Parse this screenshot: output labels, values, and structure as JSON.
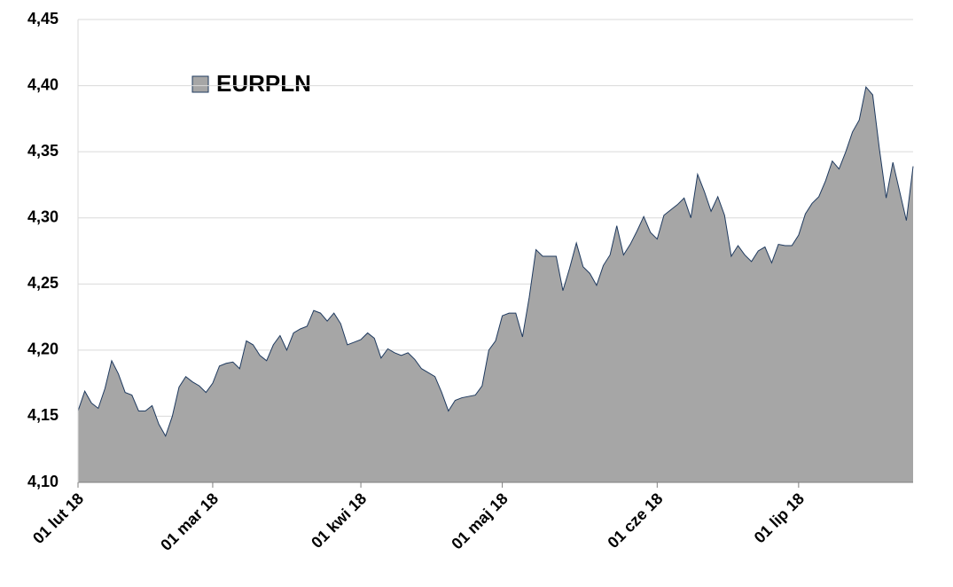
{
  "chart_data": {
    "type": "area",
    "categories": [
      "01 lut 18",
      null,
      null,
      null,
      null,
      null,
      null,
      null,
      null,
      null,
      null,
      null,
      null,
      null,
      null,
      null,
      null,
      null,
      null,
      null,
      "01 mar 18",
      null,
      null,
      null,
      null,
      null,
      null,
      null,
      null,
      null,
      null,
      null,
      null,
      null,
      null,
      null,
      null,
      null,
      null,
      null,
      null,
      null,
      "01 kwi 18",
      null,
      null,
      null,
      null,
      null,
      null,
      null,
      null,
      null,
      null,
      null,
      null,
      null,
      null,
      null,
      null,
      null,
      null,
      null,
      null,
      "01 maj 18",
      null,
      null,
      null,
      null,
      null,
      null,
      null,
      null,
      null,
      null,
      null,
      null,
      null,
      null,
      null,
      null,
      null,
      null,
      null,
      null,
      null,
      null,
      "01 cze 18",
      null,
      null,
      null,
      null,
      null,
      null,
      null,
      null,
      null,
      null,
      null,
      null,
      null,
      null,
      null,
      null,
      null,
      null,
      null,
      null,
      "01 lip 18",
      null,
      null,
      null,
      null,
      null,
      null,
      null,
      null,
      null,
      null,
      null,
      null,
      null,
      null,
      null,
      null,
      null
    ],
    "series": [
      {
        "name": "EURPLN",
        "color": "#a6a6a6",
        "line_color": "#1f3a5f",
        "values": [
          4.154,
          4.169,
          4.16,
          4.156,
          4.171,
          4.192,
          4.182,
          4.168,
          4.166,
          4.154,
          4.154,
          4.158,
          4.144,
          4.135,
          4.15,
          4.172,
          4.18,
          4.176,
          4.173,
          4.168,
          4.175,
          4.188,
          4.19,
          4.191,
          4.186,
          4.207,
          4.204,
          4.196,
          4.192,
          4.204,
          4.211,
          4.2,
          4.213,
          4.216,
          4.218,
          4.23,
          4.228,
          4.222,
          4.228,
          4.22,
          4.204,
          4.206,
          4.208,
          4.213,
          4.209,
          4.194,
          4.201,
          4.198,
          4.196,
          4.198,
          4.193,
          4.186,
          4.183,
          4.18,
          4.168,
          4.154,
          4.162,
          4.164,
          4.165,
          4.166,
          4.173,
          4.2,
          4.207,
          4.226,
          4.228,
          4.228,
          4.21,
          4.24,
          4.276,
          4.271,
          4.271,
          4.271,
          4.245,
          4.262,
          4.281,
          4.263,
          4.258,
          4.249,
          4.264,
          4.272,
          4.294,
          4.272,
          4.28,
          4.29,
          4.301,
          4.289,
          4.284,
          4.302,
          4.306,
          4.31,
          4.315,
          4.3,
          4.333,
          4.32,
          4.305,
          4.316,
          4.302,
          4.271,
          4.279,
          4.272,
          4.267,
          4.275,
          4.278,
          4.266,
          4.28,
          4.279,
          4.279,
          4.287,
          4.303,
          4.311,
          4.316,
          4.328,
          4.343,
          4.337,
          4.35,
          4.365,
          4.374,
          4.399,
          4.393,
          4.352,
          4.315,
          4.342,
          4.32,
          4.298,
          4.339
        ]
      }
    ],
    "ylim": [
      4.1,
      4.45
    ],
    "yticks": [
      {
        "value": 4.1,
        "label": "4,10"
      },
      {
        "value": 4.15,
        "label": "4,15"
      },
      {
        "value": 4.2,
        "label": "4,20"
      },
      {
        "value": 4.25,
        "label": "4,25"
      },
      {
        "value": 4.3,
        "label": "4,30"
      },
      {
        "value": 4.35,
        "label": "4,35"
      },
      {
        "value": 4.4,
        "label": "4,40"
      },
      {
        "value": 4.45,
        "label": "4,45"
      }
    ],
    "grid": true
  }
}
